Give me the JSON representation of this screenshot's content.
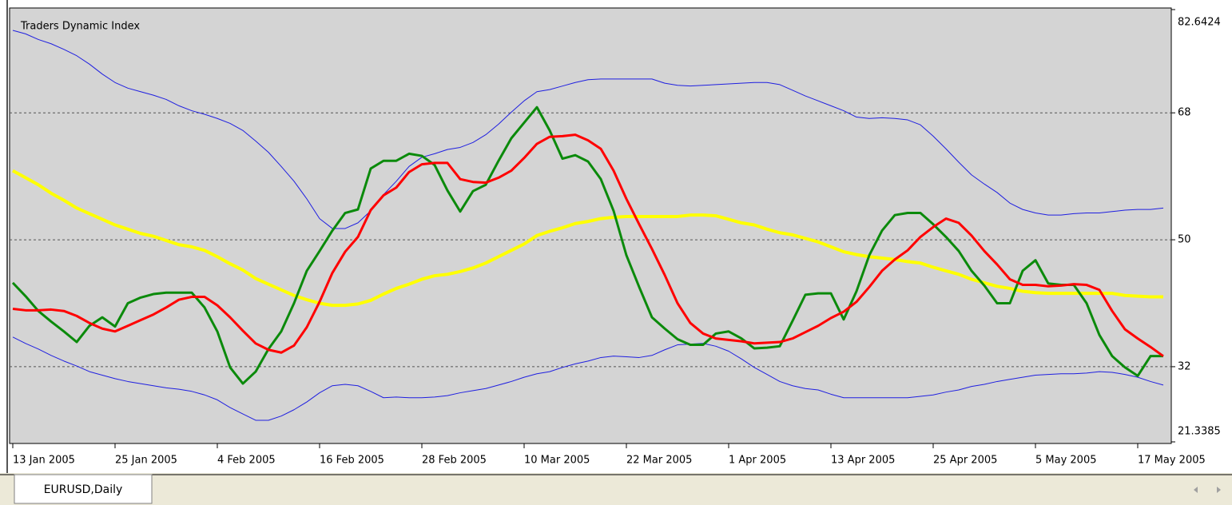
{
  "chart_data": {
    "type": "line",
    "title": "Traders Dynamic Index",
    "symbol_tab": "EURUSD,Daily",
    "categories": [
      "13 Jan 2005",
      null,
      null,
      null,
      null,
      null,
      null,
      null,
      "25 Jan 2005",
      null,
      null,
      null,
      null,
      null,
      null,
      null,
      "4 Feb 2005",
      null,
      null,
      null,
      null,
      null,
      null,
      null,
      "16 Feb 2005",
      null,
      null,
      null,
      null,
      null,
      null,
      null,
      "28 Feb 2005",
      null,
      null,
      null,
      null,
      null,
      null,
      null,
      "10 Mar 2005",
      null,
      null,
      null,
      null,
      null,
      null,
      null,
      "22 Mar 2005",
      null,
      null,
      null,
      null,
      null,
      null,
      null,
      "1 Apr 2005",
      null,
      null,
      null,
      null,
      null,
      null,
      null,
      "13 Apr 2005",
      null,
      null,
      null,
      null,
      null,
      null,
      null,
      "25 Apr 2005",
      null,
      null,
      null,
      null,
      null,
      null,
      null,
      "5 May 2005",
      null,
      null,
      null,
      null,
      null,
      null,
      null,
      "17 May 2005",
      null,
      null
    ],
    "ylim": [
      21.3385,
      82.6424
    ],
    "yticks": [
      21.3385,
      32,
      50,
      68,
      82.6424
    ],
    "grid": true,
    "series": [
      {
        "color": "#1f1fe0",
        "width": 1,
        "values": [
          79.7,
          79.2,
          78.4,
          77.8,
          77.0,
          76.1,
          74.9,
          73.5,
          72.3,
          71.5,
          71.0,
          70.5,
          69.9,
          69.0,
          68.3,
          67.8,
          67.2,
          66.5,
          65.5,
          64.0,
          62.4,
          60.4,
          58.3,
          55.8,
          53.0,
          51.6,
          51.6,
          52.4,
          54.1,
          56.4,
          58.3,
          60.4,
          61.7,
          62.2,
          62.8,
          63.1,
          63.8,
          64.9,
          66.4,
          68.1,
          69.7,
          71.0,
          71.3,
          71.8,
          72.3,
          72.7,
          72.8,
          72.8,
          72.8,
          72.8,
          72.8,
          72.2,
          71.9,
          71.8,
          71.9,
          72.0,
          72.1,
          72.2,
          72.3,
          72.3,
          72.0,
          71.2,
          70.4,
          69.7,
          69.0,
          68.3,
          67.4,
          67.2,
          67.3,
          67.2,
          67.0,
          66.3,
          64.7,
          62.9,
          61.0,
          59.2,
          57.9,
          56.7,
          55.2,
          54.3,
          53.8,
          53.5,
          53.5,
          53.7,
          53.8,
          53.8,
          54.0,
          54.2,
          54.3,
          54.3,
          54.5
        ]
      },
      {
        "color": "#1f1fe0",
        "width": 1,
        "values": [
          36.2,
          35.3,
          34.5,
          33.6,
          32.8,
          32.1,
          31.3,
          30.8,
          30.3,
          29.9,
          29.6,
          29.3,
          29.0,
          28.8,
          28.5,
          28.0,
          27.3,
          26.2,
          25.3,
          24.4,
          24.4,
          25.0,
          25.9,
          27.0,
          28.3,
          29.3,
          29.5,
          29.3,
          28.5,
          27.6,
          27.7,
          27.6,
          27.6,
          27.7,
          27.9,
          28.3,
          28.6,
          28.9,
          29.4,
          29.9,
          30.5,
          31.0,
          31.3,
          31.9,
          32.4,
          32.8,
          33.3,
          33.5,
          33.4,
          33.3,
          33.6,
          34.4,
          35.1,
          35.2,
          35.3,
          34.9,
          34.2,
          33.1,
          31.9,
          30.9,
          29.9,
          29.3,
          28.9,
          28.7,
          28.1,
          27.6,
          27.6,
          27.6,
          27.6,
          27.6,
          27.6,
          27.8,
          28.0,
          28.4,
          28.7,
          29.2,
          29.5,
          29.9,
          30.2,
          30.5,
          30.8,
          30.9,
          31.0,
          31.0,
          31.1,
          31.3,
          31.2,
          30.9,
          30.5,
          29.9,
          29.4
        ]
      },
      {
        "color": "#ffff00",
        "width": 4,
        "values": [
          59.8,
          58.8,
          57.8,
          56.6,
          55.6,
          54.5,
          53.7,
          52.9,
          52.1,
          51.5,
          50.9,
          50.5,
          49.9,
          49.3,
          49.0,
          48.5,
          47.6,
          46.6,
          45.7,
          44.5,
          43.7,
          42.9,
          42.1,
          41.5,
          41.0,
          40.7,
          40.7,
          40.9,
          41.4,
          42.3,
          43.1,
          43.7,
          44.4,
          44.9,
          45.1,
          45.5,
          46.0,
          46.7,
          47.6,
          48.5,
          49.4,
          50.6,
          51.2,
          51.7,
          52.3,
          52.6,
          53.0,
          53.2,
          53.3,
          53.3,
          53.3,
          53.3,
          53.3,
          53.5,
          53.5,
          53.4,
          52.9,
          52.4,
          52.1,
          51.5,
          51.0,
          50.7,
          50.2,
          49.7,
          49.0,
          48.3,
          47.9,
          47.6,
          47.4,
          47.2,
          46.9,
          46.7,
          46.1,
          45.6,
          45.1,
          44.4,
          43.9,
          43.4,
          43.1,
          42.7,
          42.5,
          42.4,
          42.4,
          42.4,
          42.4,
          42.4,
          42.4,
          42.1,
          42.0,
          41.9,
          41.9
        ]
      },
      {
        "color": "#0b8a0b",
        "width": 3,
        "values": [
          43.9,
          42.0,
          39.9,
          38.4,
          37.0,
          35.5,
          37.8,
          39.0,
          37.7,
          41.0,
          41.8,
          42.3,
          42.5,
          42.5,
          42.5,
          40.4,
          37.0,
          31.9,
          29.6,
          31.3,
          34.5,
          37.0,
          41.0,
          45.6,
          48.4,
          51.3,
          53.8,
          54.3,
          60.1,
          61.2,
          61.2,
          62.2,
          61.9,
          60.6,
          57.0,
          54.0,
          56.9,
          57.8,
          61.2,
          64.4,
          66.6,
          68.8,
          65.5,
          61.5,
          62.0,
          61.1,
          58.6,
          54.1,
          47.8,
          43.3,
          39.0,
          37.4,
          35.9,
          35.1,
          35.1,
          36.7,
          37.0,
          36.0,
          34.6,
          34.7,
          34.9,
          38.5,
          42.2,
          42.4,
          42.4,
          38.7,
          42.7,
          47.8,
          51.3,
          53.5,
          53.8,
          53.8,
          52.2,
          50.4,
          48.4,
          45.6,
          43.5,
          41.0,
          41.0,
          45.6,
          47.1,
          43.8,
          43.6,
          43.6,
          41.0,
          36.5,
          33.5,
          31.9,
          30.7,
          33.5,
          33.5
        ]
      },
      {
        "color": "#ff0000",
        "width": 3,
        "values": [
          40.2,
          40.0,
          40.0,
          40.1,
          39.9,
          39.2,
          38.2,
          37.4,
          37.0,
          37.8,
          38.6,
          39.4,
          40.4,
          41.5,
          41.9,
          41.9,
          40.7,
          39.0,
          37.1,
          35.3,
          34.4,
          34.0,
          35.0,
          37.6,
          41.2,
          45.3,
          48.3,
          50.4,
          54.2,
          56.3,
          57.4,
          59.6,
          60.7,
          60.9,
          60.9,
          58.6,
          58.2,
          58.1,
          58.8,
          59.8,
          61.6,
          63.6,
          64.6,
          64.7,
          64.9,
          64.1,
          62.9,
          59.8,
          55.8,
          52.2,
          48.7,
          45.0,
          41.0,
          38.2,
          36.7,
          36.0,
          35.8,
          35.6,
          35.3,
          35.4,
          35.5,
          36.0,
          36.9,
          37.8,
          38.9,
          39.8,
          41.2,
          43.3,
          45.6,
          47.2,
          48.5,
          50.4,
          51.8,
          53.0,
          52.4,
          50.6,
          48.4,
          46.5,
          44.4,
          43.6,
          43.6,
          43.4,
          43.5,
          43.7,
          43.6,
          42.9,
          39.9,
          37.3,
          36.0,
          34.8,
          33.5
        ]
      }
    ]
  }
}
